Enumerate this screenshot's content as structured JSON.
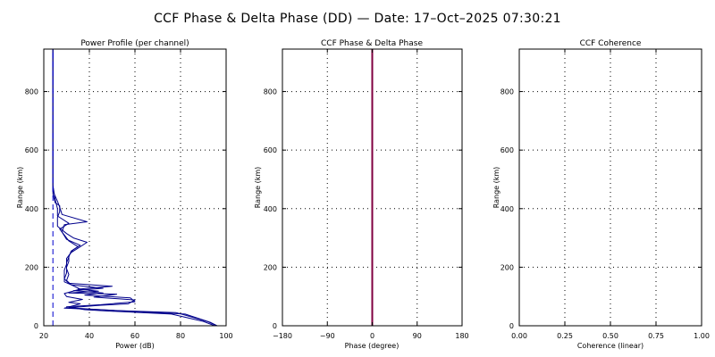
{
  "figure_title": "CCF Phase & Delta Phase (DD) — Date: 17–Oct–2025 07:30:21",
  "chart_data": [
    {
      "id": "power",
      "type": "line",
      "title": "Power Profile (per channel)",
      "xlabel": "Power (dB)",
      "ylabel": "Range (km)",
      "xlim": [
        20,
        100
      ],
      "ylim": [
        0,
        945
      ],
      "xticks": [
        20,
        40,
        60,
        80,
        100
      ],
      "yticks": [
        0,
        200,
        400,
        600,
        800
      ],
      "xgrid": [
        40,
        60,
        80
      ],
      "ygrid": [
        200,
        400,
        600,
        800
      ],
      "series": [
        {
          "style": "solid",
          "color": "#00008b",
          "points": [
            [
              96,
              0
            ],
            [
              93,
              12
            ],
            [
              82,
              40
            ],
            [
              57,
              50
            ],
            [
              45,
              55
            ],
            [
              29,
              60
            ],
            [
              36,
              75
            ],
            [
              31,
              80
            ],
            [
              37,
              90
            ],
            [
              30,
              100
            ],
            [
              29,
              110
            ],
            [
              36,
              125
            ],
            [
              32,
              140
            ],
            [
              29,
              150
            ],
            [
              29,
              170
            ],
            [
              29,
              190
            ],
            [
              30,
              210
            ],
            [
              30,
              230
            ],
            [
              32,
              250
            ],
            [
              35,
              265
            ],
            [
              39,
              285
            ],
            [
              33,
              300
            ],
            [
              30,
              315
            ],
            [
              26,
              340
            ],
            [
              26,
              370
            ],
            [
              27,
              390
            ],
            [
              27,
              410
            ],
            [
              25,
              420
            ],
            [
              24,
              450
            ],
            [
              24,
              500
            ],
            [
              24,
              560
            ],
            [
              24,
              600
            ],
            [
              24,
              650
            ],
            [
              24,
              700
            ],
            [
              24,
              760
            ],
            [
              24,
              800
            ],
            [
              24,
              860
            ],
            [
              24,
              900
            ],
            [
              24,
              945
            ]
          ]
        },
        {
          "style": "solid",
          "color": "#00008b",
          "points": [
            [
              96,
              0
            ],
            [
              92,
              14
            ],
            [
              78,
              45
            ],
            [
              51,
              52
            ],
            [
              40,
              57
            ],
            [
              31,
              62
            ],
            [
              45,
              70
            ],
            [
              57,
              75
            ],
            [
              60,
              88
            ],
            [
              42,
              98
            ],
            [
              52,
              108
            ],
            [
              31,
              112
            ],
            [
              44,
              118
            ],
            [
              35,
              125
            ],
            [
              50,
              135
            ],
            [
              31,
              145
            ],
            [
              29,
              160
            ],
            [
              30,
              180
            ],
            [
              30,
              200
            ],
            [
              31,
              220
            ],
            [
              31,
              240
            ],
            [
              33,
              260
            ],
            [
              36,
              275
            ],
            [
              30,
              295
            ],
            [
              28,
              320
            ],
            [
              29,
              345
            ],
            [
              39,
              355
            ],
            [
              28,
              380
            ],
            [
              27,
              405
            ],
            [
              26,
              425
            ],
            [
              24,
              460
            ],
            [
              24,
              520
            ],
            [
              24,
              600
            ],
            [
              24,
              700
            ],
            [
              24,
              800
            ],
            [
              24,
              945
            ]
          ]
        },
        {
          "style": "solid",
          "color": "#00008b",
          "points": [
            [
              95,
              0
            ],
            [
              90,
              15
            ],
            [
              76,
              40
            ],
            [
              49,
              50
            ],
            [
              38,
              55
            ],
            [
              30,
              65
            ],
            [
              45,
              72
            ],
            [
              60,
              82
            ],
            [
              58,
              95
            ],
            [
              38,
              105
            ],
            [
              46,
              112
            ],
            [
              33,
              120
            ],
            [
              46,
              128
            ],
            [
              32,
              140
            ],
            [
              30,
              155
            ],
            [
              31,
              175
            ],
            [
              30,
              195
            ],
            [
              30,
              215
            ],
            [
              31,
              235
            ],
            [
              32,
              255
            ],
            [
              35,
              270
            ],
            [
              31,
              290
            ],
            [
              29,
              310
            ],
            [
              27,
              330
            ],
            [
              31,
              350
            ],
            [
              26,
              375
            ],
            [
              26,
              400
            ],
            [
              25,
              430
            ],
            [
              24,
              480
            ],
            [
              24,
              560
            ],
            [
              24,
              650
            ],
            [
              24,
              760
            ],
            [
              24,
              860
            ],
            [
              24,
              945
            ]
          ]
        },
        {
          "style": "dashed",
          "color": "#0000cd",
          "points": [
            [
              24,
              0
            ],
            [
              24,
              945
            ]
          ]
        }
      ]
    },
    {
      "id": "phase",
      "type": "line",
      "title": "CCF Phase & Delta Phase",
      "xlabel": "Phase (degree)",
      "ylabel": "Range (km)",
      "xlim": [
        -180,
        180
      ],
      "ylim": [
        0,
        945
      ],
      "xticks": [
        -180,
        -90,
        0,
        90,
        180
      ],
      "xticklabels": [
        "−180",
        "−90",
        "0",
        "90",
        "180"
      ],
      "yticks": [
        0,
        200,
        400,
        600,
        800
      ],
      "xgrid": [
        -90,
        0,
        90
      ],
      "ygrid": [
        200,
        400,
        600,
        800
      ],
      "series": [
        {
          "style": "solid",
          "color": "#800040",
          "width": 2,
          "points": [
            [
              0,
              0
            ],
            [
              0,
              945
            ]
          ]
        }
      ]
    },
    {
      "id": "coherence",
      "type": "line",
      "title": "CCF Coherence",
      "xlabel": "Coherence (linear)",
      "ylabel": "Range (km)",
      "xlim": [
        0,
        1
      ],
      "ylim": [
        0,
        945
      ],
      "xticks": [
        0,
        0.25,
        0.5,
        0.75,
        1
      ],
      "xticklabels": [
        "0.00",
        "0.25",
        "0.50",
        "0.75",
        "1.00"
      ],
      "yticks": [
        0,
        200,
        400,
        600,
        800
      ],
      "xgrid": [
        0.25,
        0.5,
        0.75
      ],
      "ygrid": [
        200,
        400,
        600,
        800
      ],
      "series": []
    }
  ]
}
